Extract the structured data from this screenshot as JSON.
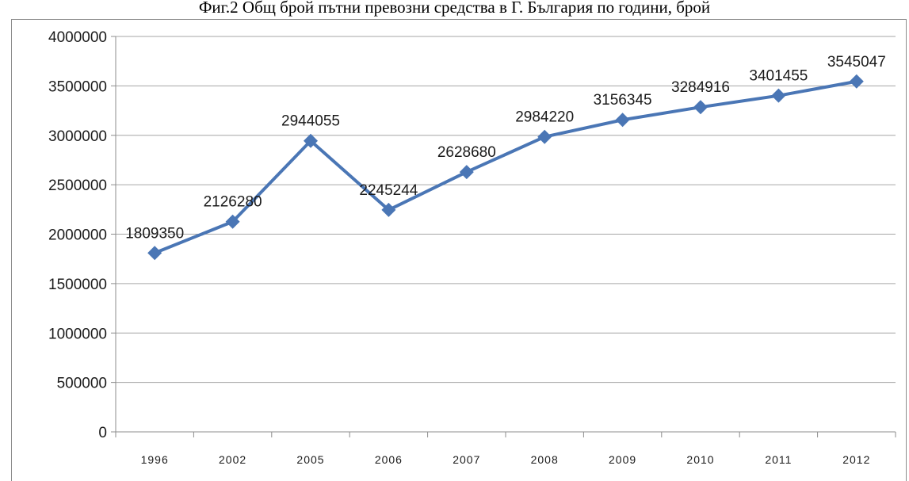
{
  "title": "Фиг.2 Общ брой пътни превозни средства в Г. България по години, брой",
  "colors": {
    "series": "#4a76b5",
    "grid": "#a6a6a6"
  },
  "chart_data": {
    "type": "line",
    "title": "Фиг.2 Общ брой пътни превозни средства в Г. България по години, брой",
    "xlabel": "",
    "ylabel": "",
    "categories": [
      "1996",
      "2002",
      "2005",
      "2006",
      "2007",
      "2008",
      "2009",
      "2010",
      "2011",
      "2012"
    ],
    "series": [
      {
        "values": [
          1809350,
          2126280,
          2944055,
          2245244,
          2628680,
          2984220,
          3156345,
          3284916,
          3401455,
          3545047
        ]
      }
    ],
    "data_labels": [
      "1809350",
      "2126280",
      "2944055",
      "2245244",
      "2628680",
      "2984220",
      "3156345",
      "3284916",
      "3401455",
      "3545047"
    ],
    "ylim": [
      0,
      4000000
    ],
    "yticks": [
      0,
      500000,
      1000000,
      1500000,
      2000000,
      2500000,
      3000000,
      3500000,
      4000000
    ],
    "ytick_labels": [
      "0",
      "500000",
      "1000000",
      "1500000",
      "2000000",
      "2500000",
      "3000000",
      "3500000",
      "4000000"
    ],
    "grid": true,
    "marker": "diamond",
    "legend": "none"
  }
}
